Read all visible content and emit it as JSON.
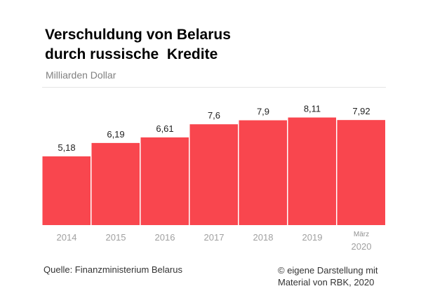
{
  "chart_data": {
    "type": "bar",
    "title": "Verschuldung von Belarus\ndurch russische  Kredite",
    "subtitle": "Milliarden Dollar",
    "categories": [
      [
        "2014"
      ],
      [
        "2015"
      ],
      [
        "2016"
      ],
      [
        "2017"
      ],
      [
        "2018"
      ],
      [
        "2019"
      ],
      [
        "März",
        "2020"
      ]
    ],
    "values": [
      5.18,
      6.19,
      6.61,
      7.6,
      7.9,
      8.11,
      7.92
    ],
    "value_labels": [
      "5,18",
      "6,19",
      "6,61",
      "7,6",
      "7,9",
      "8,11",
      "7,92"
    ],
    "ylim": [
      0,
      8.8
    ],
    "bar_color": "#f9464e",
    "grid": false,
    "legend": "none"
  },
  "footer": {
    "source": "Quelle: Finanzministerium Belarus",
    "credit_line1": "© eigene Darstellung mit",
    "credit_line2": "Material von RBK, 2020"
  }
}
